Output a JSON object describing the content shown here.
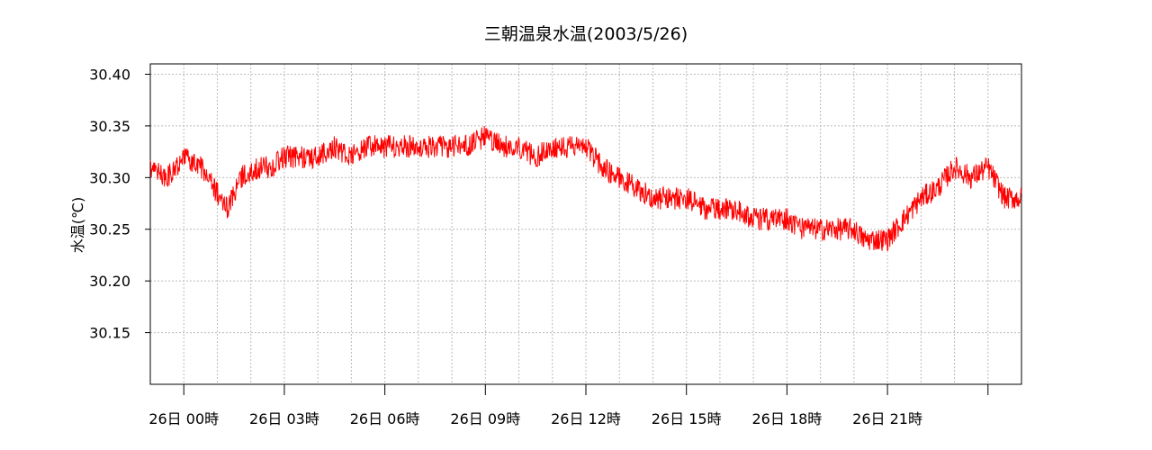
{
  "chart_data": {
    "type": "line",
    "title": "三朝温泉水温(2003/5/26)",
    "ylabel": "水温(℃)",
    "xlabel": "",
    "ylim": [
      30.1,
      30.41
    ],
    "y_ticks": [
      "30.40",
      "30.35",
      "30.30",
      "30.25",
      "30.20",
      "30.15"
    ],
    "x_ticks": [
      "26日 00時",
      "26日 03時",
      "26日 06時",
      "26日 09時",
      "26日 12時",
      "26日 15時",
      "26日 18時",
      "26日 21時"
    ],
    "x_range_hours": [
      -1,
      25
    ],
    "grid": true,
    "series_color": "#ff0000",
    "series": [
      {
        "x_hours": [
          -1.0,
          -0.5,
          0.0,
          0.5,
          0.9,
          1.3,
          1.7,
          2.2,
          2.6,
          3.0,
          3.5,
          4.0,
          4.5,
          5.0,
          5.5,
          6.0,
          6.5,
          7.0,
          7.5,
          8.0,
          8.5,
          9.0,
          9.5,
          10.0,
          10.5,
          11.0,
          11.5,
          12.0,
          12.5,
          13.0,
          13.5,
          14.0,
          14.5,
          15.0,
          15.5,
          16.0,
          16.5,
          17.0,
          17.5,
          18.0,
          18.5,
          19.0,
          19.5,
          20.0,
          20.3,
          20.7,
          21.0,
          21.5,
          22.0,
          22.5,
          23.0,
          23.5,
          24.0,
          24.5,
          25.0
        ],
        "values": [
          30.31,
          30.3,
          30.32,
          30.31,
          30.29,
          30.27,
          30.3,
          30.31,
          30.31,
          30.32,
          30.32,
          30.32,
          30.33,
          30.32,
          30.33,
          30.33,
          30.33,
          30.33,
          30.33,
          30.33,
          30.33,
          30.34,
          30.33,
          30.33,
          30.32,
          30.33,
          30.33,
          30.33,
          30.31,
          30.3,
          30.29,
          30.28,
          30.28,
          30.28,
          30.27,
          30.27,
          30.27,
          30.26,
          30.26,
          30.26,
          30.25,
          30.25,
          30.25,
          30.25,
          30.24,
          30.24,
          30.24,
          30.26,
          30.28,
          30.29,
          30.31,
          30.3,
          30.31,
          30.28,
          30.28
        ]
      }
    ]
  }
}
